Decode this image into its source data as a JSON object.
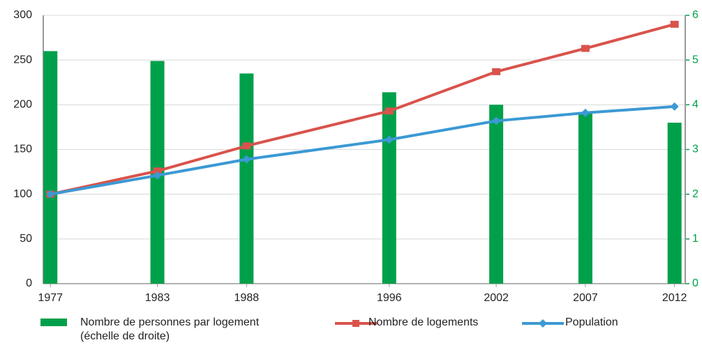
{
  "chart_data": {
    "type": "combo",
    "x": [
      1977,
      1983,
      1988,
      1996,
      2002,
      2007,
      2012
    ],
    "xlim": [
      1976.6,
      2012.6
    ],
    "xticks": [
      1977,
      1983,
      1988,
      1996,
      2002,
      2007,
      2012
    ],
    "ylim": [
      0,
      300
    ],
    "yticks": [
      0,
      50,
      100,
      150,
      200,
      250,
      300
    ],
    "y2lim": [
      0,
      6
    ],
    "y2ticks": [
      0,
      1,
      2,
      3,
      4,
      5,
      6
    ],
    "grid": true,
    "series": [
      {
        "name": "Nombre de personnes par logement (échelle de droite)",
        "type": "bar",
        "axis": "y2",
        "color": "#00a04b",
        "values": [
          5.2,
          4.98,
          4.7,
          4.28,
          4.0,
          3.83,
          3.6
        ]
      },
      {
        "name": "Nombre de logements",
        "type": "line",
        "marker": "square",
        "color": "#d9534c",
        "values": [
          100,
          126,
          154,
          193,
          237,
          263,
          290
        ]
      },
      {
        "name": "Population",
        "type": "line",
        "marker": "diamond",
        "color": "#3b99d4",
        "values": [
          100,
          121,
          139,
          161,
          182,
          191,
          198
        ]
      }
    ]
  }
}
